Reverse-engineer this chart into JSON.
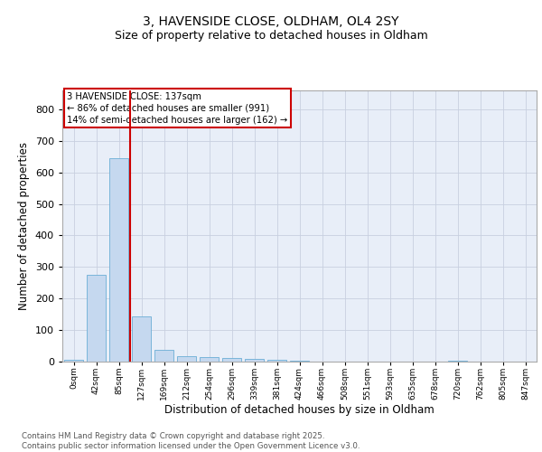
{
  "title1": "3, HAVENSIDE CLOSE, OLDHAM, OL4 2SY",
  "title2": "Size of property relative to detached houses in Oldham",
  "xlabel": "Distribution of detached houses by size in Oldham",
  "ylabel": "Number of detached properties",
  "categories": [
    "0sqm",
    "42sqm",
    "85sqm",
    "127sqm",
    "169sqm",
    "212sqm",
    "254sqm",
    "296sqm",
    "339sqm",
    "381sqm",
    "424sqm",
    "466sqm",
    "508sqm",
    "551sqm",
    "593sqm",
    "635sqm",
    "678sqm",
    "720sqm",
    "762sqm",
    "805sqm",
    "847sqm"
  ],
  "values": [
    7,
    275,
    645,
    143,
    37,
    18,
    13,
    12,
    9,
    5,
    3,
    0,
    0,
    0,
    0,
    0,
    0,
    4,
    0,
    0,
    0
  ],
  "bar_color": "#c5d8ef",
  "bar_edge_color": "#6baed6",
  "vline_x": 2.5,
  "vline_color": "#cc0000",
  "annotation_line1": "3 HAVENSIDE CLOSE: 137sqm",
  "annotation_line2": "← 86% of detached houses are smaller (991)",
  "annotation_line3": "14% of semi-detached houses are larger (162) →",
  "ylim": [
    0,
    860
  ],
  "yticks": [
    0,
    100,
    200,
    300,
    400,
    500,
    600,
    700,
    800
  ],
  "background_color": "#e8eef8",
  "grid_color": "#c8d0e0",
  "footer1": "Contains HM Land Registry data © Crown copyright and database right 2025.",
  "footer2": "Contains public sector information licensed under the Open Government Licence v3.0."
}
